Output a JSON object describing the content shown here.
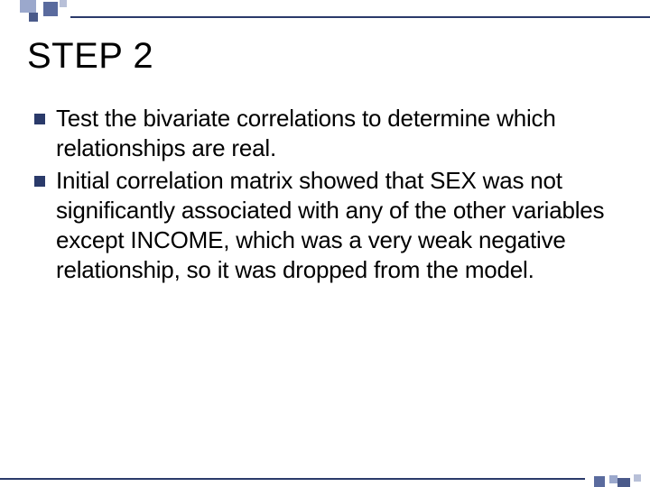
{
  "slide": {
    "title": "STEP 2",
    "bullets": [
      "Test the bivariate correlations to determine which relationships are real.",
      "Initial correlation matrix showed that SEX was not significantly associated with any of the other variables except INCOME, which was a very weak negative relationship, so it was dropped from the model."
    ],
    "colors": {
      "bullet_marker": "#2a3a6a",
      "line": "#2a3a6a",
      "deco_light": "#9ba8cc",
      "deco_mid": "#5a6b9e",
      "deco_dark": "#4a5a8a",
      "deco_pale": "#b8c0d8",
      "text": "#000000",
      "background": "#ffffff"
    },
    "title_fontsize": 40,
    "body_fontsize": 26
  }
}
